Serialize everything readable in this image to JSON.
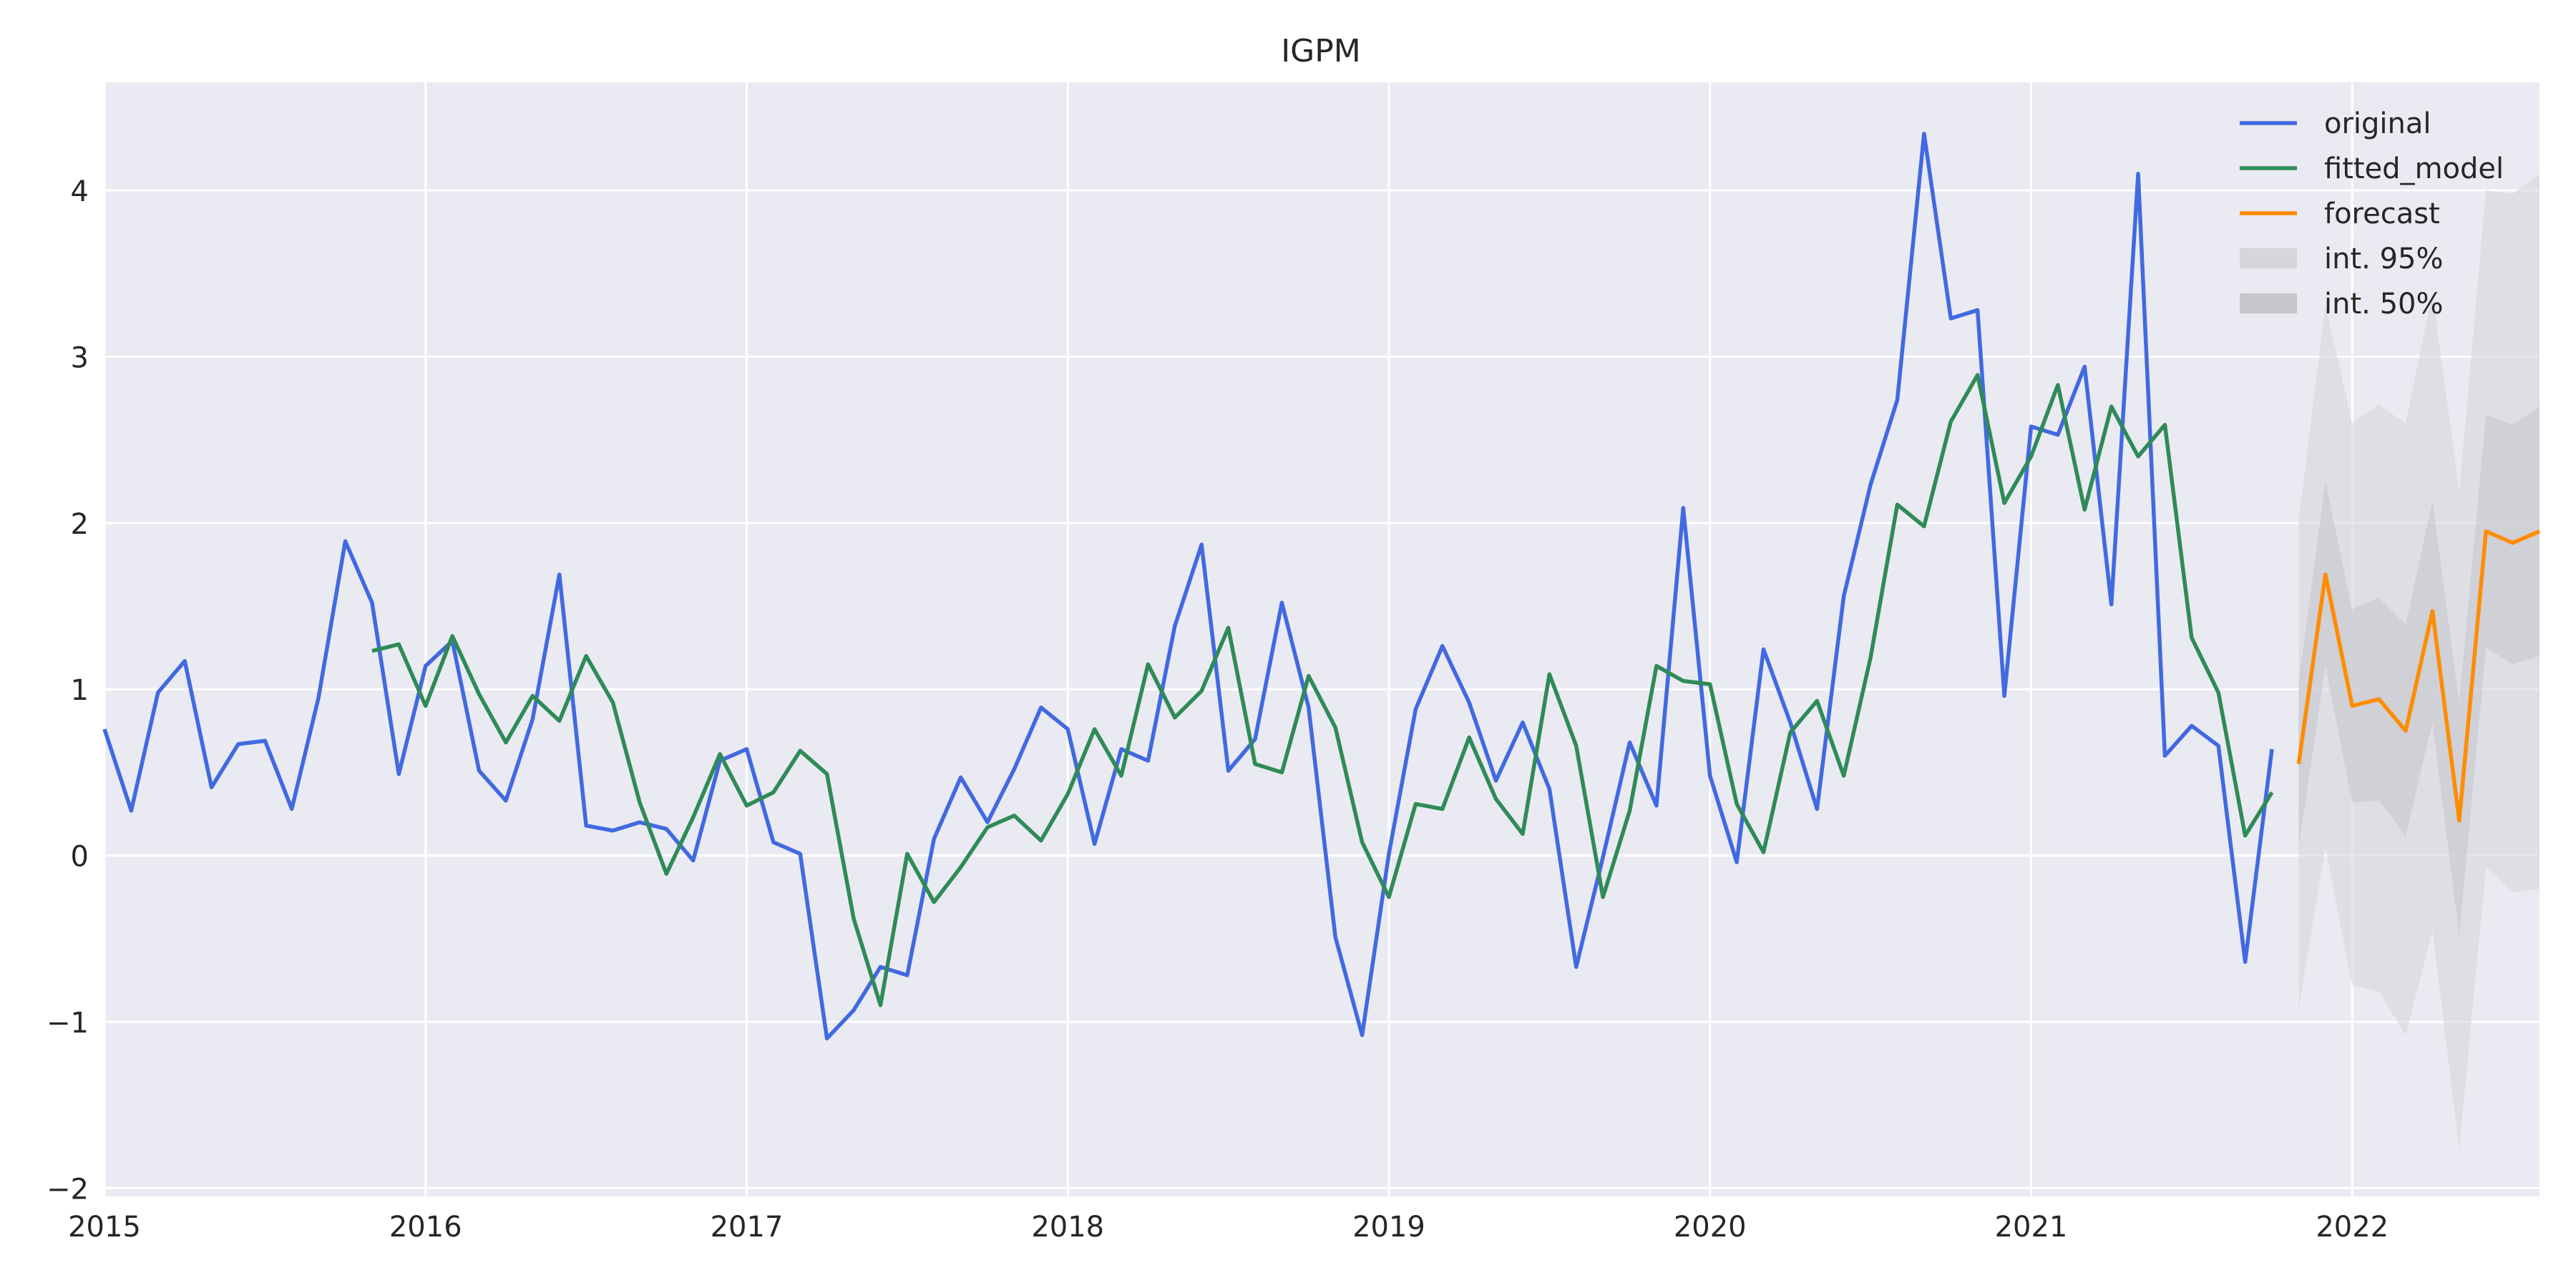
{
  "chart_data": {
    "type": "line",
    "title": "IGPM",
    "xlabel": "",
    "ylabel": "",
    "x_range": [
      "2015-01",
      "2022-08"
    ],
    "ylim": [
      -2.05,
      4.65
    ],
    "grid": true,
    "legend_position": "top-right",
    "x_ticks": [
      {
        "date": "2015-01",
        "label": "2015"
      },
      {
        "date": "2016-01",
        "label": "2016"
      },
      {
        "date": "2017-01",
        "label": "2017"
      },
      {
        "date": "2018-01",
        "label": "2018"
      },
      {
        "date": "2019-01",
        "label": "2019"
      },
      {
        "date": "2020-01",
        "label": "2020"
      },
      {
        "date": "2021-01",
        "label": "2021"
      },
      {
        "date": "2022-01",
        "label": "2022"
      }
    ],
    "y_ticks": [
      {
        "value": -2,
        "label": "−2"
      },
      {
        "value": -1,
        "label": "−1"
      },
      {
        "value": 0,
        "label": "0"
      },
      {
        "value": 1,
        "label": "1"
      },
      {
        "value": 2,
        "label": "2"
      },
      {
        "value": 3,
        "label": "3"
      },
      {
        "value": 4,
        "label": "4"
      }
    ],
    "series": [
      {
        "name": "original",
        "color": "#4169e1",
        "start": "2015-01",
        "values": [
          0.76,
          0.27,
          0.98,
          1.17,
          0.41,
          0.67,
          0.69,
          0.28,
          0.95,
          1.89,
          1.52,
          0.49,
          1.14,
          1.29,
          0.51,
          0.33,
          0.82,
          1.69,
          0.18,
          0.15,
          0.2,
          0.16,
          -0.03,
          0.57,
          0.64,
          0.08,
          0.01,
          -1.1,
          -0.93,
          -0.67,
          -0.72,
          0.1,
          0.47,
          0.2,
          0.52,
          0.89,
          0.76,
          0.07,
          0.64,
          0.57,
          1.38,
          1.87,
          0.51,
          0.7,
          1.52,
          0.89,
          -0.49,
          -1.08,
          0.01,
          0.88,
          1.26,
          0.92,
          0.45,
          0.8,
          0.4,
          -0.67,
          -0.01,
          0.68,
          0.3,
          2.09,
          0.48,
          -0.04,
          1.24,
          0.8,
          0.28,
          1.56,
          2.23,
          2.74,
          4.34,
          3.23,
          3.28,
          0.96,
          2.58,
          2.53,
          2.94,
          1.51,
          4.1,
          0.6,
          0.78,
          0.66,
          -0.64,
          0.64
        ]
      },
      {
        "name": "fitted_model",
        "color": "#2e8b57",
        "start": "2015-11",
        "values": [
          1.23,
          1.27,
          0.9,
          1.32,
          0.97,
          0.68,
          0.96,
          0.81,
          1.2,
          0.92,
          0.32,
          -0.11,
          0.23,
          0.61,
          0.3,
          0.38,
          0.63,
          0.49,
          -0.38,
          -0.9,
          0.01,
          -0.28,
          -0.07,
          0.17,
          0.24,
          0.09,
          0.37,
          0.76,
          0.48,
          1.15,
          0.83,
          0.99,
          1.37,
          0.55,
          0.5,
          1.08,
          0.77,
          0.08,
          -0.25,
          0.31,
          0.28,
          0.71,
          0.34,
          0.13,
          1.09,
          0.66,
          -0.25,
          0.27,
          1.14,
          1.05,
          1.03,
          0.31,
          0.02,
          0.74,
          0.93,
          0.48,
          1.19,
          2.11,
          1.98,
          2.61,
          2.89,
          2.12,
          2.4,
          2.83,
          2.08,
          2.7,
          2.4,
          2.59,
          1.31,
          0.98,
          0.12,
          0.38
        ]
      },
      {
        "name": "forecast",
        "color": "#ff8c00",
        "start": "2021-11",
        "values": [
          0.55,
          1.69,
          0.9,
          0.94,
          0.75,
          1.47,
          0.21,
          1.95,
          1.88,
          1.95
        ]
      }
    ],
    "intervals": [
      {
        "name": "int. 95%",
        "color": "#d5d5dc",
        "start": "2021-11",
        "lower": [
          -0.92,
          0.05,
          -0.78,
          -0.82,
          -1.08,
          -0.45,
          -1.77,
          -0.07,
          -0.22,
          -0.2
        ],
        "upper": [
          2.01,
          3.31,
          2.6,
          2.71,
          2.6,
          3.38,
          2.19,
          4.0,
          3.98,
          4.1
        ]
      },
      {
        "name": "int. 50%",
        "color": "#c6c6cd",
        "start": "2021-11",
        "lower": [
          0.05,
          1.14,
          0.32,
          0.33,
          0.12,
          0.8,
          -0.48,
          1.25,
          1.15,
          1.2
        ],
        "upper": [
          1.04,
          2.25,
          1.48,
          1.55,
          1.39,
          2.13,
          0.92,
          2.65,
          2.59,
          2.7
        ]
      }
    ]
  }
}
